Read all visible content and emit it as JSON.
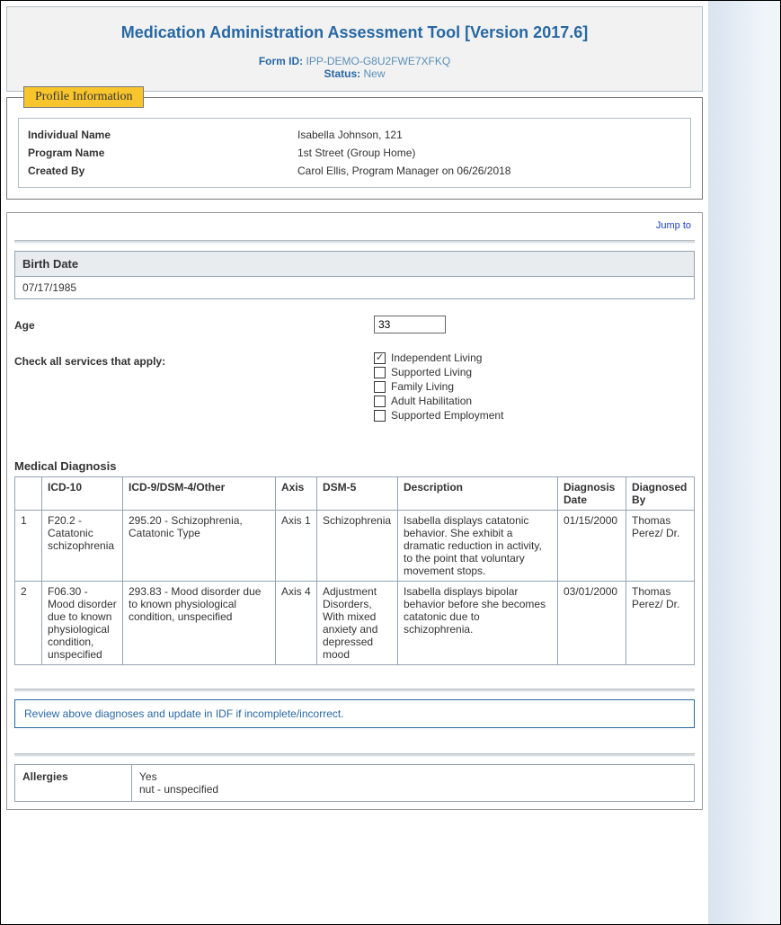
{
  "header": {
    "title": "Medication Administration Assessment Tool [Version 2017.6]",
    "form_id_label": "Form ID:",
    "form_id": "IPP-DEMO-G8U2FWE7XFKQ",
    "status_label": "Status:",
    "status": "New"
  },
  "profile": {
    "tab": "Profile Information",
    "rows": [
      {
        "label": "Individual Name",
        "value": "Isabella Johnson, 121"
      },
      {
        "label": "Program Name",
        "value": "1st Street (Group Home)"
      },
      {
        "label": "Created By",
        "value": "Carol Ellis, Program Manager on 06/26/2018"
      }
    ]
  },
  "jump": "Jump to",
  "birth": {
    "label": "Birth Date",
    "value": "07/17/1985"
  },
  "age": {
    "label": "Age",
    "value": "33"
  },
  "services": {
    "label": "Check all services that apply:",
    "options": [
      {
        "label": "Independent Living",
        "checked": true
      },
      {
        "label": "Supported Living",
        "checked": false
      },
      {
        "label": "Family Living",
        "checked": false
      },
      {
        "label": "Adult Habilitation",
        "checked": false
      },
      {
        "label": "Supported Employment",
        "checked": false
      }
    ]
  },
  "diag": {
    "title": "Medical Diagnosis",
    "columns": [
      "",
      "ICD-10",
      "ICD-9/DSM-4/Other",
      "Axis",
      "DSM-5",
      "Description",
      "Diagnosis Date",
      "Diagnosed By"
    ],
    "rows": [
      {
        "n": "1",
        "icd10": "F20.2 - Catatonic schizophrenia",
        "icd9": "295.20 - Schizophrenia, Catatonic Type",
        "axis": "Axis 1",
        "dsm5": "Schizophrenia",
        "desc": "Isabella displays catatonic behavior. She exhibit a dramatic reduction in activity, to the point that voluntary movement stops.",
        "date": "01/15/2000",
        "by": "Thomas Perez/ Dr."
      },
      {
        "n": "2",
        "icd10": "F06.30 - Mood disorder due to known physiological condition, unspecified",
        "icd9": "293.83 - Mood disorder due to known physiological condition, unspecified",
        "axis": "Axis 4",
        "dsm5": "Adjustment Disorders, With mixed anxiety and depressed mood",
        "desc": "Isabella displays bipolar behavior before she becomes catatonic due to schizophrenia.",
        "date": "03/01/2000",
        "by": "Thomas Perez/ Dr."
      }
    ],
    "note": "Review above diagnoses and update in IDF if incomplete/incorrect."
  },
  "allergies": {
    "label": "Allergies",
    "line1": "Yes",
    "line2": "nut - unspecified"
  }
}
